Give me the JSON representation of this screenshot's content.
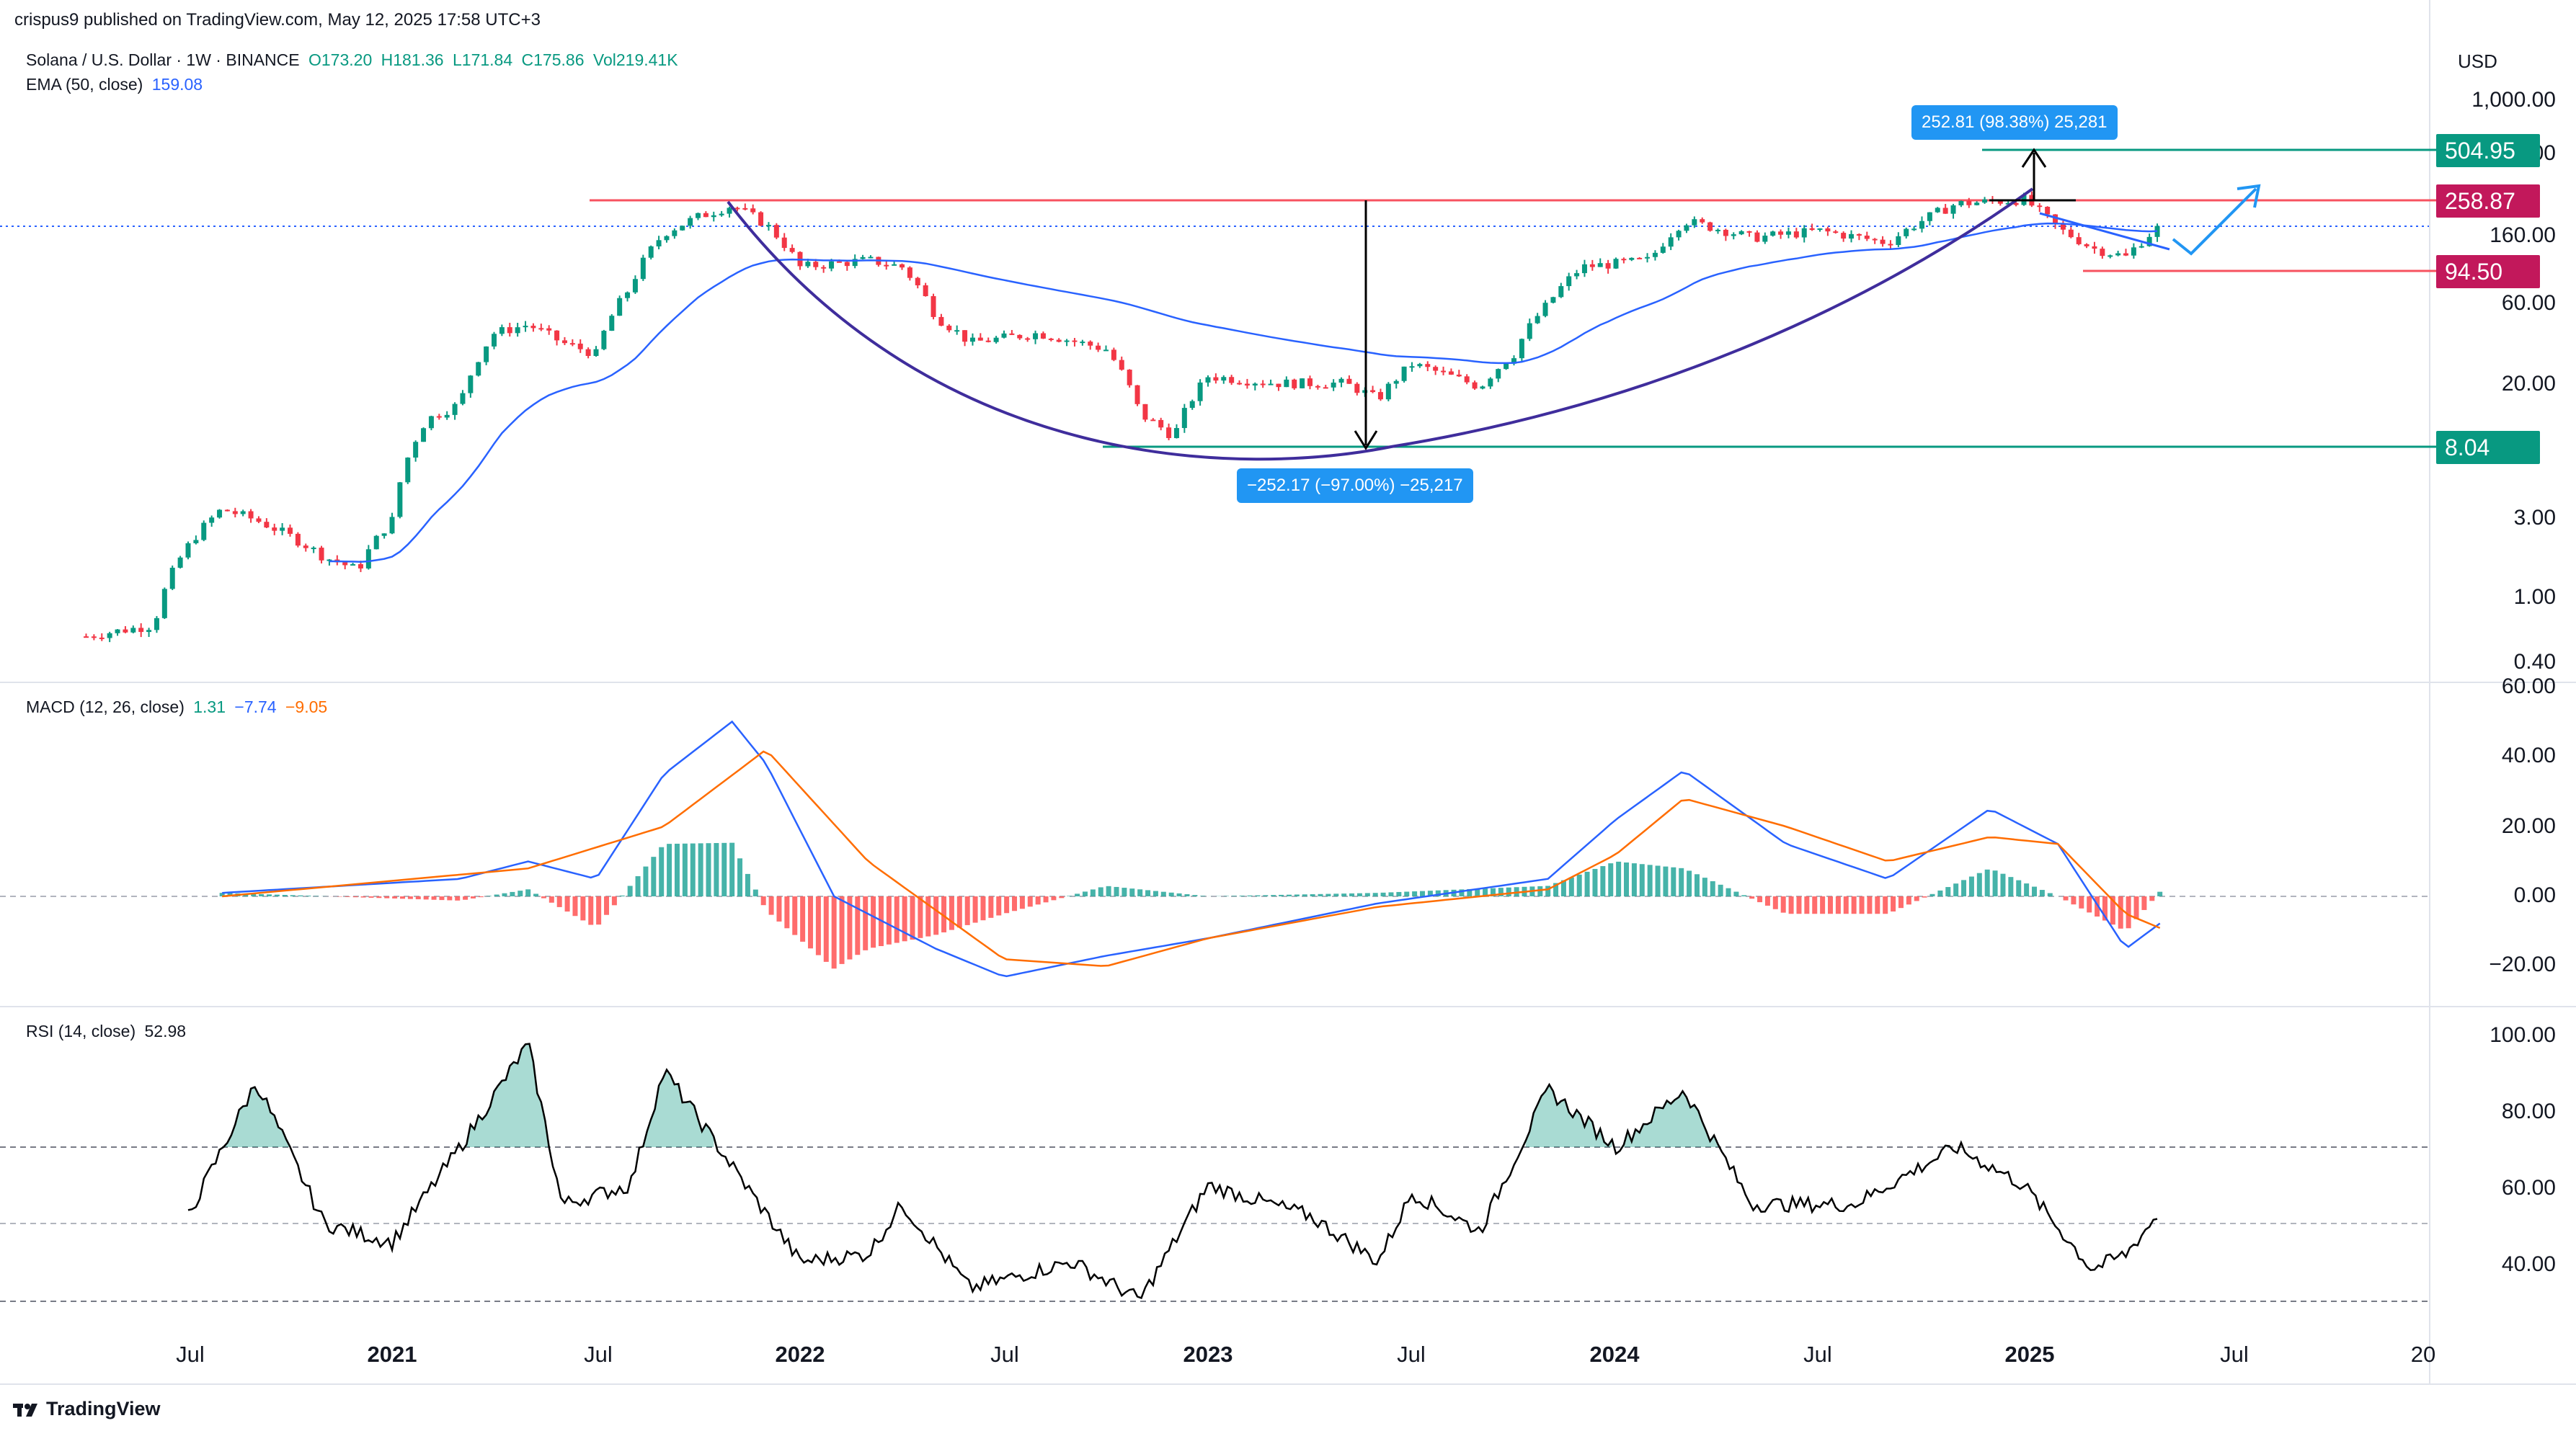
{
  "header": {
    "publisher": "crispus9 published on TradingView.com, May 12, 2025 17:58 UTC+3"
  },
  "main_legend": {
    "symbol": "Solana / U.S. Dollar · 1W · BINANCE",
    "open": "O173.20",
    "high": "H181.36",
    "low": "L171.84",
    "close": "C175.86",
    "volume": "Vol219.41K",
    "ema_label": "EMA (50, close)",
    "ema_value": "159.08"
  },
  "currency": "USD",
  "price_axis": [
    "1,000.00",
    "400.00",
    "160.00",
    "60.00",
    "20.00",
    "3.00",
    "1.00",
    "0.40"
  ],
  "price_tags": {
    "tag_504": "504.95",
    "tag_258": "258.87",
    "tag_94": "94.50",
    "tag_8": "8.04"
  },
  "annotations": {
    "up_measure": "252.81 (98.38%) 25,281",
    "down_measure": "−252.17 (−97.00%) −25,217"
  },
  "macd_legend": {
    "label": "MACD (12, 26, close)",
    "hist": "1.31",
    "macd": "−7.74",
    "signal": "−9.05"
  },
  "macd_axis": [
    "60.00",
    "40.00",
    "20.00",
    "0.00",
    "−20.00"
  ],
  "rsi_legend": {
    "label": "RSI (14, close)",
    "value": "52.98"
  },
  "rsi_axis": [
    "100.00",
    "80.00",
    "60.00",
    "40.00"
  ],
  "time_axis": [
    {
      "label": "Jul",
      "bold": false
    },
    {
      "label": "2021",
      "bold": true
    },
    {
      "label": "Jul",
      "bold": false
    },
    {
      "label": "2022",
      "bold": true
    },
    {
      "label": "Jul",
      "bold": false
    },
    {
      "label": "2023",
      "bold": true
    },
    {
      "label": "Jul",
      "bold": false
    },
    {
      "label": "2024",
      "bold": true
    },
    {
      "label": "Jul",
      "bold": false
    },
    {
      "label": "2025",
      "bold": true
    },
    {
      "label": "Jul",
      "bold": false
    },
    {
      "label": "20",
      "bold": false
    }
  ],
  "brand": "TradingView",
  "colors": {
    "up": "#089981",
    "down": "#f23645",
    "ema": "#2962ff",
    "macd": "#2962ff",
    "signal": "#ff6d00",
    "rsi": "#000000",
    "resistance": "#f7525f",
    "support": "#089981",
    "cup": "#3f2d9c",
    "tag_green": "#089981",
    "tag_red": "#c2185b"
  },
  "chart_data": [
    {
      "type": "candlestick",
      "title": "Solana / U.S. Dollar · 1W · BINANCE",
      "yscale": "log",
      "ylim": [
        0.35,
        1200
      ],
      "x_range": [
        "2020-04",
        "2025-12"
      ],
      "series": [
        {
          "name": "SOL/USD (approx. weekly closes)",
          "points": [
            [
              "2020-04",
              0.6
            ],
            [
              "2020-06",
              0.7
            ],
            [
              "2020-08",
              3.5
            ],
            [
              "2020-09",
              3.0
            ],
            [
              "2020-11",
              1.8
            ],
            [
              "2020-12",
              1.5
            ],
            [
              "2021-01",
              3.0
            ],
            [
              "2021-02",
              12
            ],
            [
              "2021-03",
              15
            ],
            [
              "2021-04",
              40
            ],
            [
              "2021-05",
              45
            ],
            [
              "2021-06",
              35
            ],
            [
              "2021-07",
              30
            ],
            [
              "2021-08",
              75
            ],
            [
              "2021-09",
              160
            ],
            [
              "2021-10",
              200
            ],
            [
              "2021-11",
              235
            ],
            [
              "2021-12",
              180
            ],
            [
              "2022-01",
              100
            ],
            [
              "2022-03",
              110
            ],
            [
              "2022-04",
              100
            ],
            [
              "2022-05",
              50
            ],
            [
              "2022-06",
              35
            ],
            [
              "2022-08",
              40
            ],
            [
              "2022-10",
              32
            ],
            [
              "2022-11",
              13
            ],
            [
              "2022-12",
              9.5
            ],
            [
              "2023-01",
              22
            ],
            [
              "2023-03",
              20
            ],
            [
              "2023-05",
              20
            ],
            [
              "2023-06",
              16
            ],
            [
              "2023-07",
              26
            ],
            [
              "2023-09",
              19
            ],
            [
              "2023-10",
              30
            ],
            [
              "2023-11",
              60
            ],
            [
              "2023-12",
              100
            ],
            [
              "2024-02",
              110
            ],
            [
              "2024-03",
              190
            ],
            [
              "2024-05",
              150
            ],
            [
              "2024-07",
              165
            ],
            [
              "2024-09",
              140
            ],
            [
              "2024-11",
              240
            ],
            [
              "2025-01",
              255
            ],
            [
              "2025-02",
              170
            ],
            [
              "2025-03",
              130
            ],
            [
              "2025-04",
              115
            ],
            [
              "2025-05",
              175.86
            ]
          ]
        },
        {
          "name": "EMA (50, close)",
          "last": 159.08
        }
      ],
      "levels": [
        {
          "label": "504.95",
          "value": 504.95
        },
        {
          "label": "258.87",
          "value": 258.87
        },
        {
          "label": "94.50",
          "value": 94.5
        },
        {
          "label": "8.04",
          "value": 8.04
        }
      ]
    },
    {
      "type": "line",
      "title": "MACD (12, 26, close)",
      "ylim": [
        -30,
        60
      ],
      "series": [
        {
          "name": "MACD",
          "points": [
            [
              "2020-08",
              1
            ],
            [
              "2021-03",
              5
            ],
            [
              "2021-05",
              10
            ],
            [
              "2021-07",
              5
            ],
            [
              "2021-09",
              35
            ],
            [
              "2021-11",
              50
            ],
            [
              "2021-12",
              38
            ],
            [
              "2022-02",
              0
            ],
            [
              "2022-05",
              -15
            ],
            [
              "2022-07",
              -23
            ],
            [
              "2022-10",
              -17
            ],
            [
              "2023-01",
              -12
            ],
            [
              "2023-06",
              -2
            ],
            [
              "2023-11",
              5
            ],
            [
              "2024-01",
              22
            ],
            [
              "2024-03",
              36
            ],
            [
              "2024-06",
              15
            ],
            [
              "2024-09",
              5
            ],
            [
              "2024-12",
              25
            ],
            [
              "2025-02",
              15
            ],
            [
              "2025-04",
              -15
            ],
            [
              "2025-05",
              -7.74
            ]
          ]
        },
        {
          "name": "Signal",
          "points": [
            [
              "2020-08",
              0
            ],
            [
              "2021-05",
              8
            ],
            [
              "2021-09",
              20
            ],
            [
              "2021-12",
              42
            ],
            [
              "2022-03",
              10
            ],
            [
              "2022-07",
              -18
            ],
            [
              "2022-10",
              -20
            ],
            [
              "2023-01",
              -12
            ],
            [
              "2023-06",
              -3
            ],
            [
              "2023-11",
              2
            ],
            [
              "2024-01",
              12
            ],
            [
              "2024-03",
              28
            ],
            [
              "2024-06",
              20
            ],
            [
              "2024-09",
              10
            ],
            [
              "2024-12",
              17
            ],
            [
              "2025-02",
              15
            ],
            [
              "2025-04",
              -5
            ],
            [
              "2025-05",
              -9.05
            ]
          ]
        }
      ]
    },
    {
      "type": "line",
      "title": "RSI (14, close)",
      "ylim": [
        20,
        100
      ],
      "series": [
        {
          "name": "RSI",
          "points": [
            [
              "2020-07",
              52
            ],
            [
              "2020-09",
              87
            ],
            [
              "2020-11",
              50
            ],
            [
              "2021-01",
              45
            ],
            [
              "2021-03",
              70
            ],
            [
              "2021-05",
              97
            ],
            [
              "2021-06",
              55
            ],
            [
              "2021-08",
              60
            ],
            [
              "2021-09",
              90
            ],
            [
              "2021-11",
              65
            ],
            [
              "2022-01",
              40
            ],
            [
              "2022-03",
              42
            ],
            [
              "2022-04",
              55
            ],
            [
              "2022-06",
              33
            ],
            [
              "2022-09",
              40
            ],
            [
              "2022-11",
              30
            ],
            [
              "2023-01",
              60
            ],
            [
              "2023-04",
              52
            ],
            [
              "2023-06",
              40
            ],
            [
              "2023-07",
              58
            ],
            [
              "2023-09",
              48
            ],
            [
              "2023-11",
              85
            ],
            [
              "2024-01",
              70
            ],
            [
              "2024-03",
              85
            ],
            [
              "2024-05",
              55
            ],
            [
              "2024-08",
              55
            ],
            [
              "2024-11",
              70
            ],
            [
              "2025-01",
              60
            ],
            [
              "2025-03",
              38
            ],
            [
              "2025-04",
              42
            ],
            [
              "2025-05",
              52.98
            ]
          ]
        }
      ],
      "reference_lines": [
        70,
        50,
        30
      ]
    }
  ]
}
